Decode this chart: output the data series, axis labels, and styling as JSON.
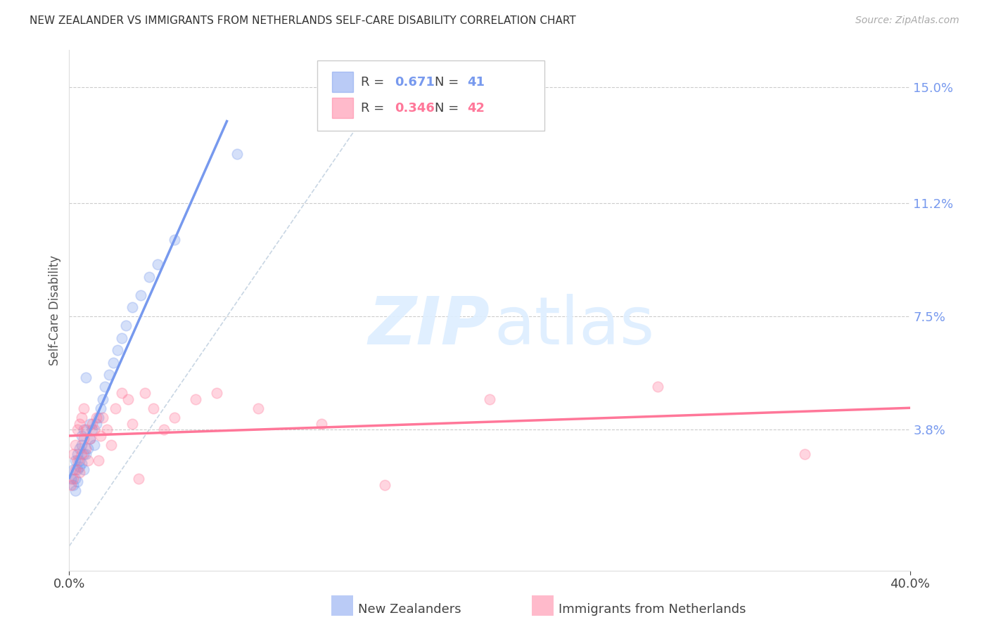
{
  "title": "NEW ZEALANDER VS IMMIGRANTS FROM NETHERLANDS SELF-CARE DISABILITY CORRELATION CHART",
  "source": "Source: ZipAtlas.com",
  "ylabel": "Self-Care Disability",
  "right_yticks": [
    "15.0%",
    "11.2%",
    "7.5%",
    "3.8%"
  ],
  "right_ytick_vals": [
    0.15,
    0.112,
    0.075,
    0.038
  ],
  "xmin": 0.0,
  "xmax": 0.4,
  "ymin": -0.008,
  "ymax": 0.162,
  "r1_val": "0.671",
  "n1_val": "41",
  "r2_val": "0.346",
  "n2_val": "42",
  "color_blue": "#7799EE",
  "color_pink": "#FF7799",
  "color_diagonal": "#BBCCDD",
  "nz_x": [
    0.001,
    0.002,
    0.002,
    0.003,
    0.003,
    0.003,
    0.004,
    0.004,
    0.004,
    0.005,
    0.005,
    0.005,
    0.006,
    0.006,
    0.006,
    0.007,
    0.007,
    0.007,
    0.008,
    0.008,
    0.009,
    0.01,
    0.01,
    0.011,
    0.012,
    0.013,
    0.014,
    0.015,
    0.016,
    0.017,
    0.019,
    0.021,
    0.023,
    0.025,
    0.027,
    0.03,
    0.034,
    0.038,
    0.042,
    0.05,
    0.08
  ],
  "nz_y": [
    0.022,
    0.02,
    0.025,
    0.018,
    0.022,
    0.028,
    0.021,
    0.025,
    0.03,
    0.026,
    0.028,
    0.032,
    0.027,
    0.033,
    0.036,
    0.025,
    0.03,
    0.038,
    0.03,
    0.055,
    0.032,
    0.035,
    0.04,
    0.038,
    0.033,
    0.04,
    0.042,
    0.045,
    0.048,
    0.052,
    0.056,
    0.06,
    0.064,
    0.068,
    0.072,
    0.078,
    0.082,
    0.088,
    0.092,
    0.1,
    0.128
  ],
  "nl_x": [
    0.001,
    0.002,
    0.002,
    0.003,
    0.003,
    0.004,
    0.004,
    0.005,
    0.005,
    0.006,
    0.006,
    0.007,
    0.007,
    0.008,
    0.008,
    0.009,
    0.01,
    0.011,
    0.012,
    0.013,
    0.014,
    0.015,
    0.016,
    0.018,
    0.02,
    0.022,
    0.025,
    0.028,
    0.03,
    0.033,
    0.036,
    0.04,
    0.045,
    0.05,
    0.06,
    0.07,
    0.09,
    0.12,
    0.15,
    0.2,
    0.28,
    0.35
  ],
  "nl_y": [
    0.02,
    0.022,
    0.03,
    0.025,
    0.033,
    0.028,
    0.038,
    0.024,
    0.04,
    0.03,
    0.042,
    0.035,
    0.045,
    0.032,
    0.038,
    0.028,
    0.035,
    0.04,
    0.038,
    0.042,
    0.028,
    0.036,
    0.042,
    0.038,
    0.033,
    0.045,
    0.05,
    0.048,
    0.04,
    0.022,
    0.05,
    0.045,
    0.038,
    0.042,
    0.048,
    0.05,
    0.045,
    0.04,
    0.02,
    0.048,
    0.052,
    0.03
  ]
}
